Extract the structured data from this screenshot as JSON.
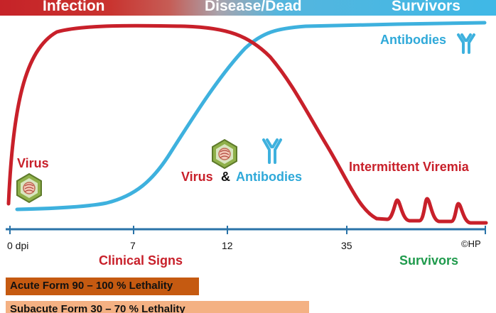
{
  "phases": {
    "infection": "Infection",
    "disease": "Disease/Dead",
    "survivors_top": "Survivors"
  },
  "labels": {
    "virus": "Virus",
    "virus2": "Virus",
    "amp": "&",
    "antibodies_mid": "Antibodies",
    "antibodies_top": "Antibodies",
    "intermittent": "Intermittent Viremia",
    "clinical": "Clinical Signs",
    "survivors_bottom": "Survivors",
    "copyright": "©HP"
  },
  "axis": {
    "ticks": [
      "0 dpi",
      "7",
      "12",
      "35"
    ]
  },
  "forms": {
    "acute": "Acute Form 90 – 100 % Lethality",
    "subacute": "Subacute Form 30 – 70 % Lethality"
  },
  "colors": {
    "virus_curve": "#c8202a",
    "antibody_curve": "#3eb1de",
    "axis": "#2a73a8",
    "acute_bar": "#c55a11",
    "subacute_bar": "#f4b183"
  },
  "icons": [
    "virus-particle-icon",
    "antibody-icon"
  ]
}
